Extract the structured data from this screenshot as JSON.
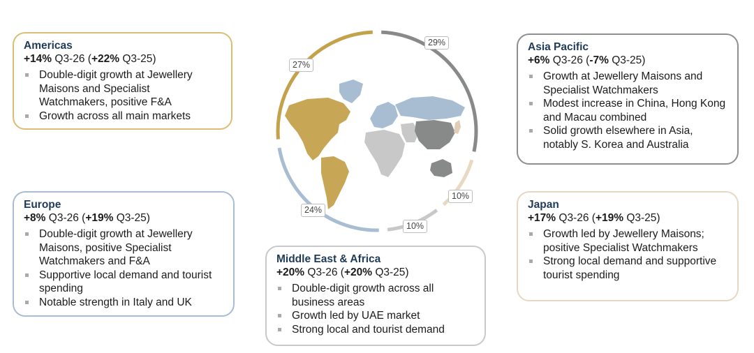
{
  "colors": {
    "americas": "#c4a24b",
    "europe": "#a8bcd2",
    "middle_east_africa": "#c8c8c8",
    "asia_pacific": "#878a88",
    "japan": "#e8d9c3"
  },
  "regions": {
    "americas": {
      "title": "Americas",
      "growth": "+14%",
      "period": " Q3-26 (",
      "prior_growth": "+22%",
      "prior_period": " Q3-25)",
      "bullets": [
        "Double-digit growth at Jewellery Maisons and Specialist Watchmakers, positive F&A",
        "Growth across all main markets"
      ]
    },
    "europe": {
      "title": "Europe",
      "growth": "+8%",
      "period": " Q3-26 (",
      "prior_growth": "+19%",
      "prior_period": " Q3-25)",
      "bullets": [
        "Double-digit growth at Jewellery Maisons, positive Specialist Watchmakers and F&A",
        "Supportive local demand and tourist spending",
        "Notable strength in Italy and UK"
      ]
    },
    "middle_east_africa": {
      "title": "Middle East & Africa",
      "growth": "+20%",
      "period": " Q3-26 (",
      "prior_growth": "+20%",
      "prior_period": " Q3-25)",
      "bullets": [
        "Double-digit growth across all business areas",
        "Growth led by UAE market",
        "Strong local and tourist demand"
      ]
    },
    "asia_pacific": {
      "title": "Asia Pacific",
      "growth": "+6%",
      "period": " Q3-26 (",
      "prior_growth": "-7%",
      "prior_period": " Q3-25)",
      "bullets": [
        "Growth at Jewellery Maisons and Specialist Watchmakers",
        "Modest increase in China, Hong Kong and Macau combined",
        "Solid growth elsewhere in Asia, notably S. Korea and Australia"
      ]
    },
    "japan": {
      "title": "Japan",
      "growth": "+17%",
      "period": " Q3-26 (",
      "prior_growth": "+19%",
      "prior_period": " Q3-25)",
      "bullets": [
        "Growth led by Jewellery Maisons; positive Specialist Watchmakers",
        "Strong local demand and supportive tourist spending"
      ]
    }
  },
  "shares": {
    "americas": "27%",
    "asia_pacific": "29%",
    "japan": "10%",
    "middle_east_africa": "10%",
    "europe": "24%"
  },
  "share_values": {
    "americas": 27,
    "asia_pacific": 29,
    "japan": 10,
    "middle_east_africa": 10,
    "europe": 24
  }
}
